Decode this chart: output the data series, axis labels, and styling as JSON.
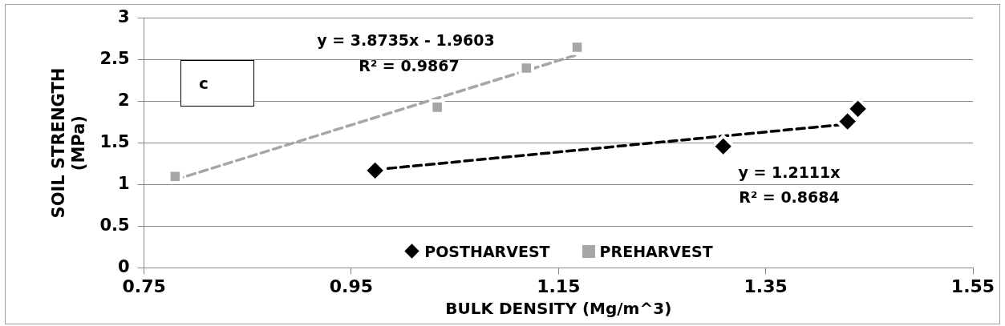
{
  "chart_data": {
    "type": "scatter",
    "xlabel": "BULK DENSITY (Mg/m^3)",
    "ylabel": "SOIL STRENGTH (MPa)",
    "xlim": [
      0.75,
      1.55
    ],
    "xticks": [
      0.75,
      0.95,
      1.15,
      1.35,
      1.55
    ],
    "ylim": [
      0,
      3
    ],
    "yticks": [
      0,
      0.5,
      1,
      1.5,
      2,
      2.5,
      3
    ],
    "grid": "y",
    "legend": "bottom",
    "series": [
      {
        "type": "line",
        "color": "#000000",
        "line_style": "dashed",
        "marker": "none",
        "x": [
          0.973,
          1.439
        ],
        "values": [
          1.18,
          1.74
        ]
      },
      {
        "type": "line",
        "color": "#a6a6a6",
        "line_style": "dashed",
        "marker": "none",
        "x": [
          0.78,
          1.168
        ],
        "values": [
          1.06,
          2.56
        ]
      },
      {
        "name": "POSTHARVEST",
        "color": "#000000",
        "marker": "diamond",
        "x": [
          0.973,
          1.309,
          1.429,
          1.439
        ],
        "values": [
          1.17,
          1.46,
          1.76,
          1.91
        ]
      },
      {
        "name": "PREHARVEST",
        "color": "#a6a6a6",
        "marker": "square",
        "x": [
          0.78,
          1.033,
          1.119,
          1.168
        ],
        "values": [
          1.1,
          1.93,
          2.4,
          2.65
        ]
      }
    ],
    "annotations": [
      "c",
      "y = 3.8735x - 1.9603",
      "R² = 0.9867",
      "y = 1.2111x",
      "R² = 0.8684"
    ]
  }
}
